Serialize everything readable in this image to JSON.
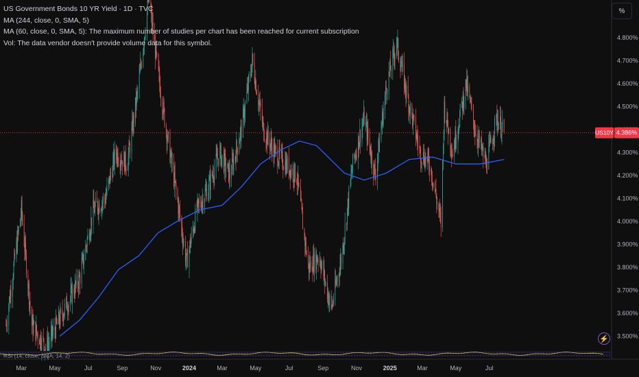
{
  "header": {
    "title": "US Government Bonds 10 YR Yield · 1D · TVC",
    "ma1": "MA (244, close, 0, SMA, 5)",
    "ma2": "MA (60, close, 0, SMA, 5): The maximum number of studies per chart has been reached for current subscription",
    "vol": "Vol: The data vendor doesn't provide volume data for this symbol."
  },
  "toolbar": {
    "unit_label": "%",
    "bolt_icon": "lightning-icon"
  },
  "rsi_label": "RSI (14, close, SMA, 14, 2)",
  "colors": {
    "up": "#26a69a",
    "down": "#ef5350",
    "ma": "#2962ff",
    "price_line": "#f23645",
    "background": "#0f0f0f"
  },
  "chart_data": {
    "type": "candlestick",
    "y_unit": "%",
    "ylim": [
      3.47,
      5.02
    ],
    "y_ticks": [
      "4.800%",
      "4.700%",
      "4.600%",
      "4.500%",
      "4.400%",
      "4.300%",
      "4.200%",
      "4.100%",
      "4.000%",
      "3.900%",
      "3.800%",
      "3.700%",
      "3.600%",
      "3.500%"
    ],
    "y_tick_values": [
      4.8,
      4.7,
      4.6,
      4.5,
      4.4,
      4.3,
      4.2,
      4.1,
      4.0,
      3.9,
      3.8,
      3.7,
      3.6,
      3.5
    ],
    "x_ticks": [
      {
        "label": "Mar",
        "bold": false
      },
      {
        "label": "May",
        "bold": false
      },
      {
        "label": "Jul",
        "bold": false
      },
      {
        "label": "Sep",
        "bold": false
      },
      {
        "label": "Nov",
        "bold": false
      },
      {
        "label": "2024",
        "bold": true
      },
      {
        "label": "Mar",
        "bold": false
      },
      {
        "label": "May",
        "bold": false
      },
      {
        "label": "Jul",
        "bold": false
      },
      {
        "label": "Sep",
        "bold": false
      },
      {
        "label": "Nov",
        "bold": false
      },
      {
        "label": "2025",
        "bold": true
      },
      {
        "label": "Mar",
        "bold": false
      },
      {
        "label": "May",
        "bold": false
      },
      {
        "label": "Jul",
        "bold": false
      }
    ],
    "last_price": {
      "symbol": "US10Y",
      "value": 4.386,
      "label": "4.386%"
    },
    "close_series": [
      {
        "date": "2023-02-01",
        "close": 3.55
      },
      {
        "date": "2023-03-01",
        "close": 4.05
      },
      {
        "date": "2023-03-20",
        "close": 3.55
      },
      {
        "date": "2023-04-15",
        "close": 3.45
      },
      {
        "date": "2023-05-15",
        "close": 3.6
      },
      {
        "date": "2023-06-15",
        "close": 3.75
      },
      {
        "date": "2023-07-10",
        "close": 4.05
      },
      {
        "date": "2023-08-01",
        "close": 4.1
      },
      {
        "date": "2023-08-20",
        "close": 4.3
      },
      {
        "date": "2023-09-10",
        "close": 4.25
      },
      {
        "date": "2023-10-01",
        "close": 4.6
      },
      {
        "date": "2023-10-19",
        "close": 4.98
      },
      {
        "date": "2023-11-05",
        "close": 4.65
      },
      {
        "date": "2023-11-20",
        "close": 4.4
      },
      {
        "date": "2023-12-10",
        "close": 4.1
      },
      {
        "date": "2023-12-27",
        "close": 3.82
      },
      {
        "date": "2024-01-15",
        "close": 4.05
      },
      {
        "date": "2024-02-05",
        "close": 4.15
      },
      {
        "date": "2024-02-25",
        "close": 4.3
      },
      {
        "date": "2024-03-15",
        "close": 4.2
      },
      {
        "date": "2024-04-05",
        "close": 4.4
      },
      {
        "date": "2024-04-25",
        "close": 4.7
      },
      {
        "date": "2024-05-15",
        "close": 4.4
      },
      {
        "date": "2024-06-05",
        "close": 4.3
      },
      {
        "date": "2024-06-25",
        "close": 4.25
      },
      {
        "date": "2024-07-15",
        "close": 4.2
      },
      {
        "date": "2024-08-05",
        "close": 3.8
      },
      {
        "date": "2024-08-25",
        "close": 3.85
      },
      {
        "date": "2024-09-16",
        "close": 3.62
      },
      {
        "date": "2024-10-05",
        "close": 3.85
      },
      {
        "date": "2024-10-25",
        "close": 4.25
      },
      {
        "date": "2024-11-15",
        "close": 4.45
      },
      {
        "date": "2024-12-05",
        "close": 4.2
      },
      {
        "date": "2024-12-25",
        "close": 4.58
      },
      {
        "date": "2025-01-13",
        "close": 4.78
      },
      {
        "date": "2025-02-01",
        "close": 4.55
      },
      {
        "date": "2025-02-25",
        "close": 4.3
      },
      {
        "date": "2025-03-15",
        "close": 4.25
      },
      {
        "date": "2025-04-04",
        "close": 3.99
      },
      {
        "date": "2025-04-10",
        "close": 4.5
      },
      {
        "date": "2025-04-25",
        "close": 4.3
      },
      {
        "date": "2025-05-20",
        "close": 4.6
      },
      {
        "date": "2025-06-05",
        "close": 4.4
      },
      {
        "date": "2025-06-25",
        "close": 4.25
      },
      {
        "date": "2025-07-15",
        "close": 4.45
      },
      {
        "date": "2025-07-28",
        "close": 4.386
      }
    ],
    "ma_series": [
      {
        "date": "2023-05-10",
        "value": 3.5
      },
      {
        "date": "2023-06-15",
        "value": 3.57
      },
      {
        "date": "2023-07-20",
        "value": 3.67
      },
      {
        "date": "2023-08-25",
        "value": 3.79
      },
      {
        "date": "2023-10-01",
        "value": 3.85
      },
      {
        "date": "2023-11-05",
        "value": 3.95
      },
      {
        "date": "2023-12-10",
        "value": 4.0
      },
      {
        "date": "2024-01-20",
        "value": 4.05
      },
      {
        "date": "2024-03-01",
        "value": 4.07
      },
      {
        "date": "2024-04-05",
        "value": 4.15
      },
      {
        "date": "2024-05-10",
        "value": 4.25
      },
      {
        "date": "2024-06-15",
        "value": 4.31
      },
      {
        "date": "2024-07-20",
        "value": 4.35
      },
      {
        "date": "2024-08-20",
        "value": 4.33
      },
      {
        "date": "2024-10-10",
        "value": 4.21
      },
      {
        "date": "2024-11-15",
        "value": 4.18
      },
      {
        "date": "2024-12-25",
        "value": 4.21
      },
      {
        "date": "2025-02-05",
        "value": 4.27
      },
      {
        "date": "2025-03-20",
        "value": 4.28
      },
      {
        "date": "2025-05-01",
        "value": 4.25
      },
      {
        "date": "2025-06-15",
        "value": 4.25
      },
      {
        "date": "2025-07-28",
        "value": 4.27
      }
    ]
  }
}
